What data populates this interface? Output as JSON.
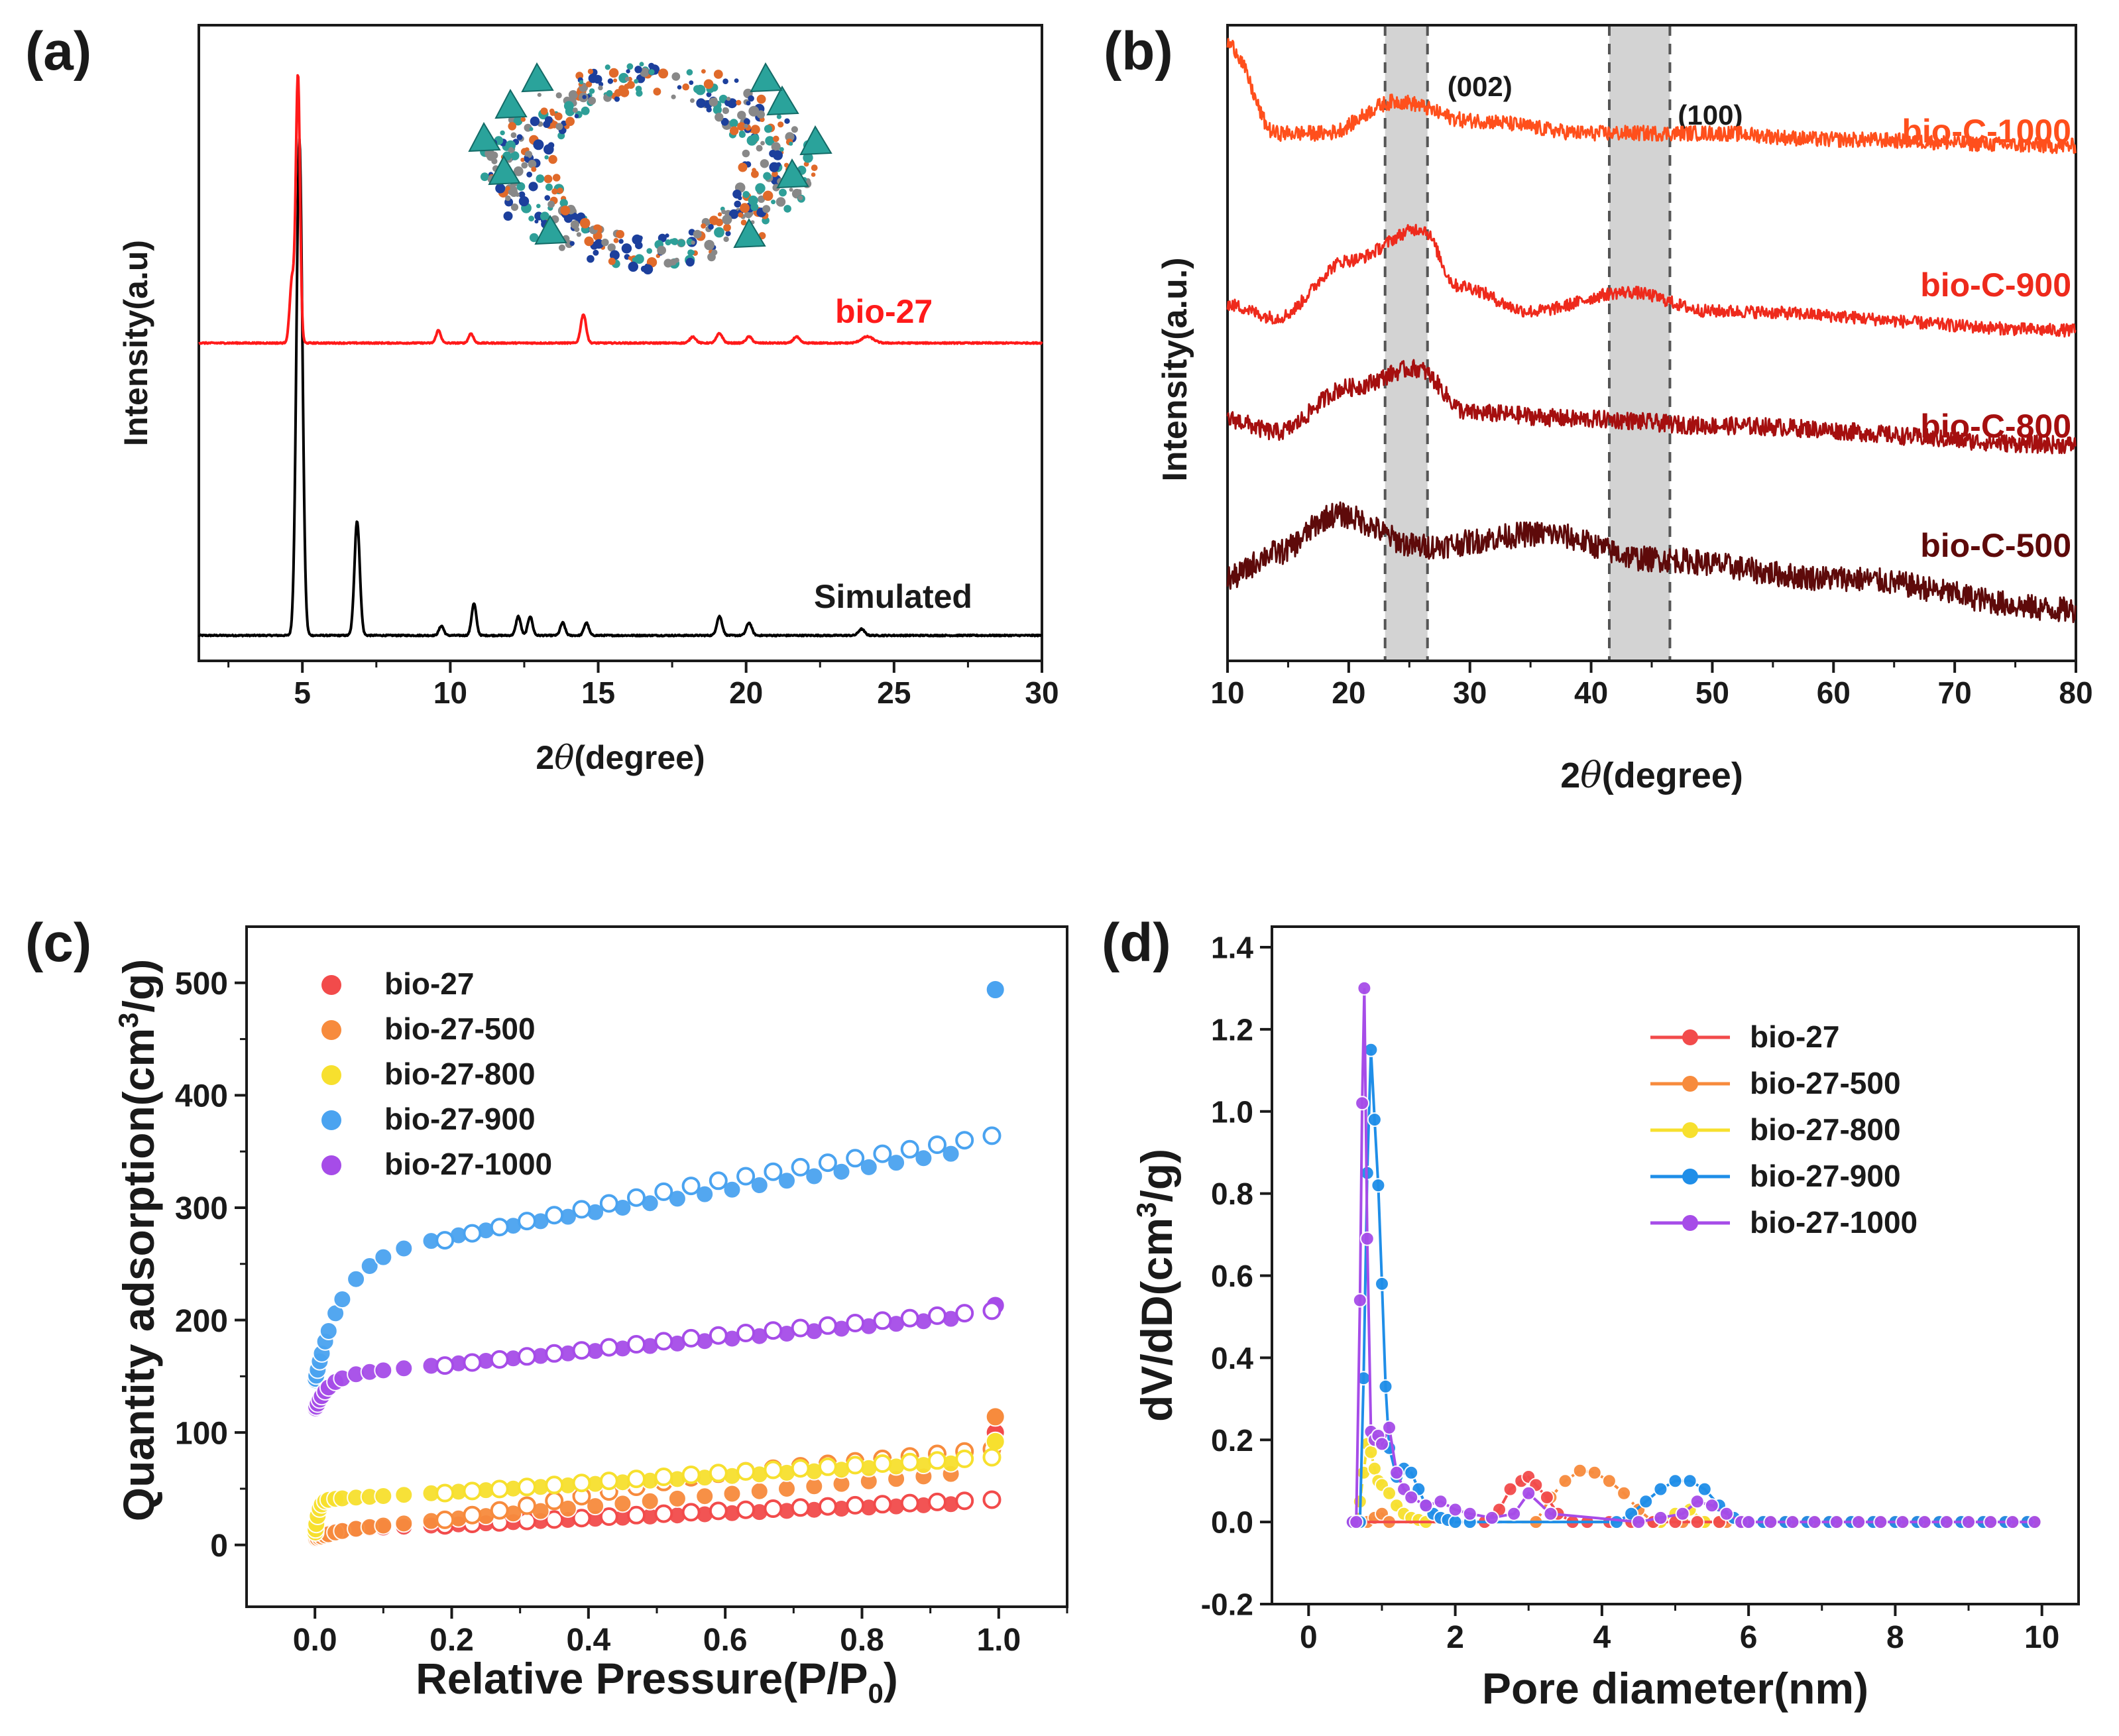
{
  "chart_data": [
    {
      "panel_label": "(a)",
      "type": "line",
      "title": "",
      "xlabel_prefix": "2",
      "xlabel_symbol": "θ",
      "xlabel_suffix": "(degree)",
      "ylabel": "Intensity(a.u)",
      "xlim": [
        1.5,
        30
      ],
      "ylim": [
        0,
        1
      ],
      "xticks": [
        5,
        10,
        15,
        20,
        25,
        30
      ],
      "yticks": [],
      "inset": "crystal-structure",
      "series": [
        {
          "name": "Simulated",
          "color": "#000000",
          "offset": 0.04,
          "baseline_noise": 0.002,
          "peaks": [
            [
              4.9,
              0.78,
              0.1
            ],
            [
              6.85,
              0.18,
              0.09
            ],
            [
              9.7,
              0.015,
              0.08
            ],
            [
              10.8,
              0.05,
              0.08
            ],
            [
              12.3,
              0.03,
              0.08
            ],
            [
              12.7,
              0.03,
              0.08
            ],
            [
              13.8,
              0.02,
              0.08
            ],
            [
              14.6,
              0.02,
              0.08
            ],
            [
              19.1,
              0.03,
              0.09
            ],
            [
              20.1,
              0.02,
              0.09
            ],
            [
              23.9,
              0.01,
              0.1
            ]
          ]
        },
        {
          "name": "bio-27",
          "color": "#ff1a1a",
          "offset": 0.5,
          "baseline_noise": 0.002,
          "peaks": [
            [
              4.65,
              0.1,
              0.08
            ],
            [
              4.85,
              0.42,
              0.07
            ],
            [
              9.6,
              0.02,
              0.08
            ],
            [
              10.7,
              0.015,
              0.08
            ],
            [
              14.5,
              0.045,
              0.09
            ],
            [
              18.2,
              0.01,
              0.1
            ],
            [
              19.1,
              0.015,
              0.1
            ],
            [
              20.1,
              0.01,
              0.1
            ],
            [
              21.7,
              0.01,
              0.1
            ],
            [
              24.1,
              0.01,
              0.2
            ]
          ]
        }
      ]
    },
    {
      "panel_label": "(b)",
      "type": "line",
      "title": "",
      "xlabel_prefix": "2",
      "xlabel_symbol": "θ",
      "xlabel_suffix": "(degree)",
      "ylabel": "Intensity(a.u.)",
      "xlim": [
        10,
        80
      ],
      "ylim": [
        0,
        1
      ],
      "xticks": [
        10,
        20,
        30,
        40,
        50,
        60,
        70,
        80
      ],
      "yticks": [],
      "shaded_bands": [
        {
          "label": "(002)",
          "range": [
            23,
            26.5
          ]
        },
        {
          "label": "(100)",
          "range": [
            41.5,
            46.5
          ]
        }
      ],
      "series": [
        {
          "name": "bio-C-1000",
          "color": "#ff4f1c",
          "offset": 0.83,
          "noise": 0.012,
          "shape": [
            [
              10,
              0.14
            ],
            [
              14,
              0.0
            ],
            [
              18,
              0.0
            ],
            [
              24,
              0.05
            ],
            [
              30,
              0.02
            ],
            [
              40,
              0.0
            ],
            [
              50,
              0.0
            ],
            [
              60,
              -0.01
            ],
            [
              80,
              -0.02
            ]
          ]
        },
        {
          "name": "bio-C-900",
          "color": "#ee2a1c",
          "offset": 0.55,
          "noise": 0.01,
          "shape": [
            [
              10,
              0.01
            ],
            [
              14,
              -0.01
            ],
            [
              20,
              0.08
            ],
            [
              26,
              0.13
            ],
            [
              29,
              0.04
            ],
            [
              35,
              0.0
            ],
            [
              43,
              0.03
            ],
            [
              50,
              0.0
            ],
            [
              80,
              -0.03
            ]
          ]
        },
        {
          "name": "bio-C-800",
          "color": "#a50f0f",
          "offset": 0.37,
          "noise": 0.014,
          "shape": [
            [
              10,
              0.01
            ],
            [
              14,
              -0.01
            ],
            [
              20,
              0.06
            ],
            [
              25.5,
              0.09
            ],
            [
              30,
              0.02
            ],
            [
              40,
              0.01
            ],
            [
              50,
              0.0
            ],
            [
              80,
              -0.03
            ]
          ]
        },
        {
          "name": "bio-C-500",
          "color": "#5e0a0a",
          "offset": 0.13,
          "noise": 0.02,
          "shape": [
            [
              10,
              0.0
            ],
            [
              14,
              0.04
            ],
            [
              19,
              0.1
            ],
            [
              26,
              0.05
            ],
            [
              36,
              0.07
            ],
            [
              45,
              0.03
            ],
            [
              60,
              0.0
            ],
            [
              80,
              -0.05
            ]
          ]
        }
      ]
    },
    {
      "panel_label": "(c)",
      "type": "scatter",
      "title": "",
      "xlabel": "Relative Pressure(P/P",
      "xlabel_sub": "0",
      "xlabel_close": ")",
      "ylabel": "Quantity adsorption(cm",
      "ylabel_sup": "3",
      "ylabel_close": "/g)",
      "xlim": [
        -0.1,
        1.1
      ],
      "ylim": [
        -55,
        550
      ],
      "xticks": [
        0.0,
        0.2,
        0.4,
        0.6,
        0.8,
        1.0
      ],
      "yticks": [
        0,
        100,
        200,
        300,
        400,
        500
      ],
      "legend": "top-left",
      "series": [
        {
          "name": "bio-27",
          "color": "#f24b4b",
          "P0": 5,
          "plateau": 13,
          "knee": 0.02,
          "slope": 25,
          "P1": 100,
          "desorption_gap": 3
        },
        {
          "name": "bio-27-500",
          "color": "#f78b3d",
          "P0": 5,
          "plateau": 12,
          "knee": 0.03,
          "slope": 55,
          "P1": 114,
          "desorption_gap": 20
        },
        {
          "name": "bio-27-800",
          "color": "#f7e02e",
          "P0": 8,
          "plateau": 40,
          "knee": 0.005,
          "slope": 35,
          "P1": 92,
          "desorption_gap": 4
        },
        {
          "name": "bio-27-900",
          "color": "#4aa3f0",
          "P0": 145,
          "plateau": 255,
          "knee": 0.04,
          "slope": 100,
          "P1": 494,
          "desorption_gap": 12
        },
        {
          "name": "bio-27-1000",
          "color": "#a64ce8",
          "P0": 120,
          "plateau": 150,
          "knee": 0.02,
          "slope": 55,
          "P1": 213,
          "desorption_gap": 5
        }
      ]
    },
    {
      "panel_label": "(d)",
      "type": "line",
      "title": "",
      "xlabel": "Pore diameter(nm)",
      "ylabel": "dV/dD(cm",
      "ylabel_sup": "3",
      "ylabel_close": "/g)",
      "xlim": [
        -0.5,
        10.5
      ],
      "ylim": [
        -0.2,
        1.45
      ],
      "xticks": [
        0,
        2,
        4,
        6,
        8,
        10
      ],
      "yticks": [
        -0.2,
        0.0,
        0.2,
        0.4,
        0.6,
        0.8,
        1.0,
        1.2,
        1.4
      ],
      "legend": "top-right",
      "series": [
        {
          "name": "bio-27",
          "color": "#f24b4b",
          "x": [
            2.4,
            2.6,
            2.75,
            2.9,
            3.0,
            3.1,
            3.25,
            3.4,
            3.6
          ],
          "y": [
            0.0,
            0.03,
            0.08,
            0.1,
            0.11,
            0.09,
            0.06,
            0.02,
            0.0
          ]
        },
        {
          "name": "bio-27-500",
          "color": "#f78b3d",
          "x": [
            0.8,
            0.9,
            1.0,
            1.1,
            3.1,
            3.3,
            3.5,
            3.7,
            3.9,
            4.1,
            4.3,
            4.5,
            4.7
          ],
          "y": [
            0.0,
            0.01,
            0.02,
            0.0,
            0.0,
            0.06,
            0.1,
            0.125,
            0.12,
            0.1,
            0.07,
            0.03,
            0.0
          ]
        },
        {
          "name": "bio-27-800",
          "color": "#f7e02e",
          "x": [
            0.65,
            0.7,
            0.75,
            0.8,
            0.85,
            0.9,
            0.95,
            1.0,
            1.1,
            1.2,
            1.3,
            1.4,
            1.5,
            1.6,
            4.8,
            5.0,
            5.2,
            5.4
          ],
          "y": [
            0.0,
            0.05,
            0.12,
            0.19,
            0.17,
            0.13,
            0.1,
            0.09,
            0.07,
            0.04,
            0.02,
            0.01,
            0.005,
            0.0,
            0.0,
            0.02,
            0.03,
            0.0
          ]
        },
        {
          "name": "bio-27-900",
          "color": "#1f8ee8",
          "x": [
            0.7,
            0.75,
            0.8,
            0.85,
            0.9,
            0.95,
            1.0,
            1.05,
            1.1,
            1.2,
            1.3,
            1.4,
            1.5,
            1.6,
            1.7,
            1.8,
            1.9,
            2.0,
            2.2,
            4.2,
            4.4,
            4.6,
            4.8,
            5.0,
            5.2,
            5.4,
            5.6,
            5.8,
            6.0
          ],
          "y": [
            0.0,
            0.35,
            0.85,
            1.15,
            0.98,
            0.82,
            0.58,
            0.33,
            0.18,
            0.11,
            0.13,
            0.12,
            0.08,
            0.04,
            0.02,
            0.01,
            0.005,
            0.0,
            0.0,
            0.0,
            0.02,
            0.05,
            0.08,
            0.1,
            0.1,
            0.08,
            0.04,
            0.01,
            0.0
          ]
        },
        {
          "name": "bio-27-1000",
          "color": "#a64ce8",
          "x": [
            0.6,
            0.65,
            0.7,
            0.73,
            0.76,
            0.8,
            0.85,
            0.9,
            0.95,
            1.0,
            1.1,
            1.2,
            1.3,
            1.4,
            1.6,
            1.8,
            2.0,
            2.2,
            2.5,
            2.8,
            3.0,
            3.3,
            4.5,
            4.8,
            5.1,
            5.3,
            5.5,
            5.7,
            5.9
          ],
          "y": [
            0.0,
            0.0,
            0.54,
            1.02,
            1.3,
            0.69,
            0.22,
            0.2,
            0.21,
            0.19,
            0.23,
            0.12,
            0.08,
            0.06,
            0.04,
            0.05,
            0.03,
            0.02,
            0.01,
            0.02,
            0.07,
            0.02,
            0.0,
            0.01,
            0.02,
            0.05,
            0.04,
            0.02,
            0.0
          ]
        }
      ]
    }
  ]
}
